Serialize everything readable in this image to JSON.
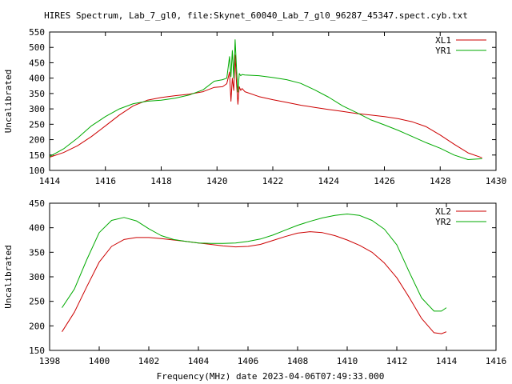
{
  "title": "HIRES Spectrum, Lab_7_gl0, file:Skynet_60040_Lab_7_gl0_96287_45347.spect.cyb.txt",
  "xlabel_bottom": "Frequency(MHz) date 2023-04-06T07:49:33.000",
  "colors": {
    "series1": "#cc0000",
    "series2": "#00aa00",
    "axis": "#000000"
  },
  "chart_data": [
    {
      "type": "line",
      "ylabel": "Uncalibrated",
      "xlim": [
        1414,
        1430
      ],
      "ylim": [
        100,
        550
      ],
      "xticks": [
        1414,
        1416,
        1418,
        1420,
        1422,
        1424,
        1426,
        1428,
        1430
      ],
      "yticks": [
        100,
        150,
        200,
        250,
        300,
        350,
        400,
        450,
        500,
        550
      ],
      "grid": false,
      "legend": "top-right",
      "series": [
        {
          "name": "XL1",
          "color": "#cc0000",
          "x": [
            1414.0,
            1414.5,
            1415.0,
            1415.5,
            1416.0,
            1416.5,
            1417.0,
            1417.5,
            1418.0,
            1418.5,
            1419.0,
            1419.5,
            1419.9,
            1420.2,
            1420.35,
            1420.45,
            1420.5,
            1420.55,
            1420.6,
            1420.65,
            1420.7,
            1420.75,
            1420.8,
            1420.85,
            1420.9,
            1421.0,
            1421.5,
            1422.0,
            1422.5,
            1423.0,
            1423.5,
            1424.0,
            1424.5,
            1425.0,
            1425.5,
            1426.0,
            1426.5,
            1427.0,
            1427.5,
            1428.0,
            1428.5,
            1429.0,
            1429.5
          ],
          "y": [
            143,
            158,
            180,
            210,
            245,
            280,
            310,
            328,
            337,
            343,
            348,
            356,
            370,
            372,
            382,
            420,
            325,
            400,
            360,
            475,
            380,
            315,
            372,
            360,
            366,
            356,
            340,
            330,
            321,
            312,
            305,
            298,
            292,
            285,
            280,
            275,
            268,
            258,
            242,
            215,
            185,
            157,
            141
          ]
        },
        {
          "name": "YR1",
          "color": "#00aa00",
          "x": [
            1414.0,
            1414.5,
            1415.0,
            1415.5,
            1416.0,
            1416.5,
            1417.0,
            1417.5,
            1418.0,
            1418.5,
            1419.0,
            1419.5,
            1419.9,
            1420.2,
            1420.35,
            1420.45,
            1420.5,
            1420.55,
            1420.6,
            1420.65,
            1420.7,
            1420.75,
            1420.8,
            1420.85,
            1420.9,
            1421.0,
            1421.5,
            1422.0,
            1422.5,
            1423.0,
            1423.5,
            1424.0,
            1424.5,
            1425.0,
            1425.5,
            1426.0,
            1426.5,
            1427.0,
            1427.5,
            1428.0,
            1428.5,
            1429.0,
            1429.5
          ],
          "y": [
            145,
            170,
            205,
            245,
            275,
            300,
            317,
            325,
            328,
            335,
            345,
            362,
            390,
            395,
            400,
            470,
            405,
            490,
            400,
            525,
            430,
            355,
            415,
            408,
            412,
            410,
            408,
            402,
            395,
            383,
            362,
            338,
            310,
            288,
            265,
            248,
            230,
            210,
            190,
            172,
            150,
            135,
            138
          ]
        }
      ]
    },
    {
      "type": "line",
      "ylabel": "Uncalibrated",
      "xlim": [
        1398,
        1416
      ],
      "ylim": [
        150,
        450
      ],
      "xticks": [
        1398,
        1400,
        1402,
        1404,
        1406,
        1408,
        1410,
        1412,
        1414,
        1416
      ],
      "yticks": [
        150,
        200,
        250,
        300,
        350,
        400,
        450
      ],
      "grid": false,
      "legend": "top-right",
      "series": [
        {
          "name": "XL2",
          "color": "#cc0000",
          "x": [
            1398.5,
            1399.0,
            1399.5,
            1400.0,
            1400.5,
            1401.0,
            1401.5,
            1402.0,
            1402.5,
            1403.0,
            1403.5,
            1404.0,
            1404.5,
            1405.0,
            1405.5,
            1406.0,
            1406.5,
            1407.0,
            1407.5,
            1408.0,
            1408.5,
            1409.0,
            1409.5,
            1410.0,
            1410.5,
            1411.0,
            1411.5,
            1412.0,
            1412.5,
            1413.0,
            1413.5,
            1413.8,
            1414.0
          ],
          "y": [
            188,
            228,
            280,
            330,
            362,
            376,
            380,
            380,
            378,
            375,
            372,
            369,
            366,
            363,
            361,
            362,
            366,
            374,
            382,
            389,
            392,
            390,
            384,
            375,
            364,
            350,
            328,
            298,
            258,
            215,
            186,
            184,
            188
          ]
        },
        {
          "name": "YR2",
          "color": "#00aa00",
          "x": [
            1398.5,
            1399.0,
            1399.5,
            1400.0,
            1400.5,
            1401.0,
            1401.5,
            1402.0,
            1402.5,
            1403.0,
            1403.5,
            1404.0,
            1404.5,
            1405.0,
            1405.5,
            1406.0,
            1406.5,
            1407.0,
            1407.5,
            1408.0,
            1408.5,
            1409.0,
            1409.5,
            1410.0,
            1410.5,
            1411.0,
            1411.5,
            1412.0,
            1412.5,
            1413.0,
            1413.5,
            1413.8,
            1414.0
          ],
          "y": [
            237,
            275,
            335,
            390,
            415,
            421,
            414,
            398,
            384,
            376,
            372,
            369,
            368,
            368,
            369,
            372,
            377,
            385,
            395,
            405,
            413,
            420,
            425,
            428,
            425,
            415,
            397,
            365,
            310,
            257,
            230,
            230,
            237
          ]
        }
      ]
    }
  ]
}
